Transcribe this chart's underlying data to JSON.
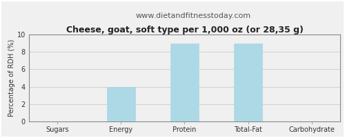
{
  "title": "Cheese, goat, soft type per 1,000 oz (or 28,35 g)",
  "subtitle": "www.dietandfitnesstoday.com",
  "categories": [
    "Sugars",
    "Energy",
    "Protein",
    "Total-Fat",
    "Carbohydrate"
  ],
  "values": [
    0,
    4,
    9,
    9,
    0
  ],
  "bar_color": "#add8e6",
  "bar_edgecolor": "#add8e6",
  "ylabel": "Percentage of RDH (%)",
  "ylim": [
    0,
    10
  ],
  "yticks": [
    0,
    2,
    4,
    6,
    8,
    10
  ],
  "background_color": "#f0f0f0",
  "plot_bg_color": "#f0f0f0",
  "title_fontsize": 9,
  "subtitle_fontsize": 8,
  "ylabel_fontsize": 7,
  "tick_fontsize": 7,
  "grid_color": "#d0d0d0",
  "border_color": "#888888"
}
